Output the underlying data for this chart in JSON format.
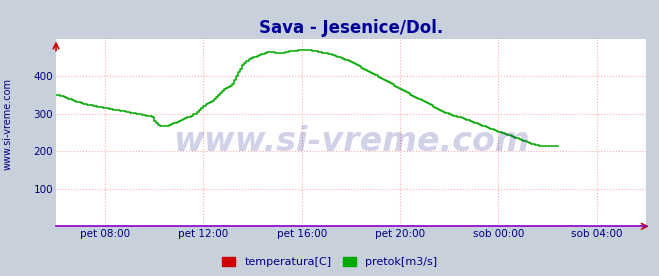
{
  "title": "Sava - Jesenice/Dol.",
  "title_color": "#000099",
  "title_fontsize": 12,
  "bg_color": "#c8d0dc",
  "plot_bg_color": "#ffffff",
  "ylabel_text": "www.si-vreme.com",
  "ylabel_color": "#000080",
  "ylabel_fontsize": 7,
  "grid_color": "#ffaaaa",
  "grid_linestyle": ":",
  "grid_linewidth": 0.8,
  "line_color": "#00aa00",
  "line_width": 1.1,
  "bottom_line_color": "#8800cc",
  "right_arrow_color": "#cc0000",
  "top_arrow_color": "#cc0000",
  "xlim": [
    0,
    288
  ],
  "ylim": [
    0,
    500
  ],
  "yticks": [
    100,
    200,
    300,
    400
  ],
  "xtick_positions": [
    24,
    72,
    120,
    168,
    216,
    264
  ],
  "xtick_labels": [
    "pet 08:00",
    "pet 12:00",
    "pet 16:00",
    "pet 20:00",
    "sob 00:00",
    "sob 04:00"
  ],
  "tick_color": "#000080",
  "tick_fontsize": 7.5,
  "legend_items": [
    {
      "label": "temperatura[C]",
      "color": "#cc0000"
    },
    {
      "label": "pretok[m3/s]",
      "color": "#00aa00"
    }
  ],
  "legend_fontsize": 8,
  "watermark": "www.si-vreme.com",
  "watermark_color": "#000080",
  "watermark_alpha": 0.18,
  "watermark_fontsize": 24,
  "pretok_values": [
    350,
    350,
    348,
    346,
    344,
    342,
    340,
    338,
    336,
    334,
    332,
    330,
    328,
    326,
    325,
    324,
    323,
    322,
    321,
    320,
    319,
    318,
    317,
    316,
    315,
    314,
    313,
    312,
    311,
    310,
    309,
    308,
    307,
    306,
    305,
    304,
    303,
    302,
    301,
    300,
    299,
    298,
    297,
    296,
    295,
    294,
    293,
    292,
    280,
    276,
    270,
    268,
    267,
    266,
    268,
    270,
    272,
    274,
    276,
    278,
    280,
    282,
    285,
    288,
    290,
    292,
    295,
    298,
    300,
    305,
    310,
    315,
    320,
    325,
    328,
    332,
    335,
    340,
    345,
    350,
    355,
    360,
    365,
    368,
    372,
    375,
    380,
    390,
    400,
    410,
    420,
    430,
    435,
    440,
    445,
    448,
    450,
    452,
    454,
    456,
    458,
    460,
    462,
    464,
    465,
    465,
    464,
    463,
    462,
    461,
    462,
    463,
    464,
    465,
    466,
    467,
    468,
    468,
    469,
    469,
    470,
    470,
    470,
    470,
    469,
    468,
    467,
    466,
    465,
    464,
    463,
    462,
    461,
    460,
    458,
    456,
    454,
    452,
    450,
    448,
    446,
    444,
    442,
    440,
    438,
    435,
    432,
    429,
    426,
    423,
    420,
    417,
    414,
    411,
    408,
    405,
    402,
    399,
    396,
    393,
    390,
    387,
    384,
    381,
    378,
    375,
    372,
    369,
    366,
    363,
    360,
    357,
    354,
    351,
    348,
    345,
    342,
    340,
    337,
    334,
    331,
    328,
    325,
    322,
    319,
    316,
    313,
    310,
    307,
    305,
    303,
    301,
    299,
    297,
    295,
    293,
    291,
    290,
    288,
    286,
    284,
    282,
    280,
    278,
    276,
    274,
    272,
    270,
    268,
    266,
    264,
    262,
    260,
    258,
    256,
    254,
    252,
    250,
    248,
    246,
    244,
    242,
    240,
    238,
    236,
    234,
    232,
    230,
    228,
    226,
    224,
    222,
    220,
    218,
    217,
    216,
    215,
    215,
    215,
    215,
    215,
    215,
    215,
    215,
    215,
    215
  ]
}
